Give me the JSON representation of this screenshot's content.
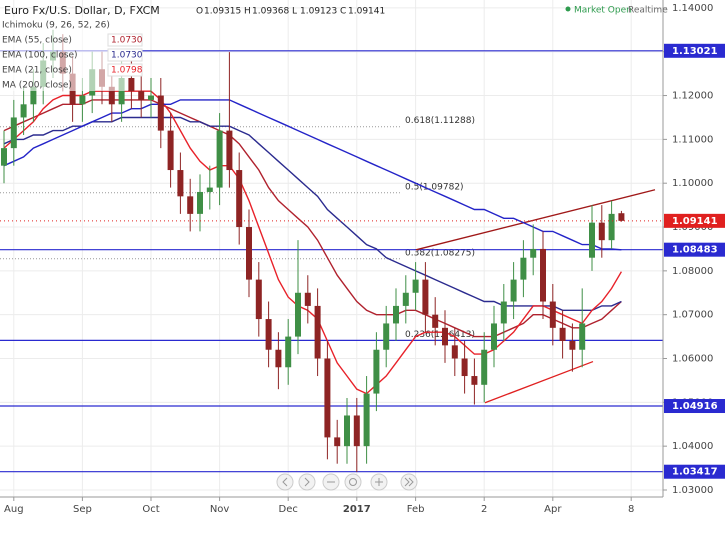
{
  "chart_data": {
    "type": "candlestick",
    "title": "Euro Fx/U.S. Dollar, D, FXCM",
    "ohlc_labels": [
      "O",
      "H",
      "L",
      "C"
    ],
    "status": "Market Open",
    "feed": "Realtime",
    "categories": [
      null,
      "Aug",
      null,
      null,
      null,
      null,
      null,
      null,
      "Sep",
      null,
      null,
      null,
      null,
      null,
      null,
      "Oct",
      null,
      null,
      null,
      null,
      null,
      null,
      "Nov",
      null,
      null,
      null,
      null,
      null,
      null,
      "Dec",
      null,
      null,
      null,
      null,
      null,
      null,
      "2017",
      null,
      null,
      null,
      null,
      null,
      "Feb",
      null,
      null,
      null,
      null,
      null,
      null,
      "2",
      null,
      null,
      null,
      null,
      null,
      null,
      "Apr",
      null,
      null,
      null,
      null,
      null,
      null,
      null,
      "8"
    ],
    "open": [
      1.104,
      1.108,
      1.115,
      1.118,
      1.122,
      1.128,
      1.13,
      1.125,
      1.118,
      1.12,
      1.126,
      1.122,
      1.118,
      1.124,
      1.121,
      1.119,
      1.12,
      1.112,
      1.103,
      1.097,
      1.093,
      1.098,
      1.099,
      1.112,
      1.103,
      1.09,
      1.078,
      1.069,
      1.062,
      1.058,
      1.065,
      1.075,
      1.072,
      1.06,
      1.042,
      1.04,
      1.047,
      1.04,
      1.052,
      1.062,
      1.068,
      1.072,
      1.075,
      1.078,
      1.07,
      1.067,
      1.063,
      1.06,
      1.056,
      1.054,
      1.062,
      1.068,
      1.073,
      1.078,
      1.083,
      1.085,
      1.073,
      1.067,
      1.064,
      1.062,
      1.083,
      1.091,
      1.087,
      1.09315,
      null
    ],
    "high": [
      1.112,
      1.119,
      1.122,
      1.126,
      1.132,
      1.135,
      1.134,
      1.129,
      1.124,
      1.13,
      1.13,
      1.126,
      1.128,
      1.128,
      1.125,
      1.124,
      1.124,
      1.116,
      1.107,
      1.101,
      1.102,
      1.104,
      1.116,
      1.1299,
      1.107,
      1.094,
      1.082,
      1.073,
      1.066,
      1.069,
      1.087,
      1.079,
      1.076,
      1.064,
      1.046,
      1.051,
      1.051,
      1.056,
      1.066,
      1.072,
      1.076,
      1.079,
      1.082,
      1.082,
      1.074,
      1.071,
      1.067,
      1.064,
      1.06,
      1.066,
      1.072,
      1.077,
      1.082,
      1.087,
      1.0906,
      1.089,
      1.077,
      1.071,
      1.068,
      1.076,
      1.095,
      1.095,
      1.096,
      1.09368,
      null
    ],
    "low": [
      1.1,
      1.104,
      1.111,
      1.114,
      1.118,
      1.124,
      1.121,
      1.114,
      1.114,
      1.116,
      1.118,
      1.114,
      1.114,
      1.117,
      1.115,
      1.115,
      1.108,
      1.099,
      1.093,
      1.089,
      1.089,
      1.094,
      1.095,
      1.099,
      1.086,
      1.074,
      1.065,
      1.058,
      1.053,
      1.054,
      1.061,
      1.068,
      1.056,
      1.037,
      1.036,
      1.036,
      1.0341,
      1.036,
      1.048,
      1.058,
      1.064,
      1.068,
      1.071,
      1.066,
      1.063,
      1.059,
      1.056,
      1.052,
      1.0495,
      1.05,
      1.058,
      1.064,
      1.069,
      1.074,
      1.079,
      1.069,
      1.063,
      1.06,
      1.057,
      1.058,
      1.08,
      1.083,
      1.085,
      1.09123,
      null
    ],
    "close": [
      1.108,
      1.115,
      1.118,
      1.122,
      1.128,
      1.13,
      1.125,
      1.118,
      1.12,
      1.126,
      1.122,
      1.118,
      1.124,
      1.121,
      1.119,
      1.12,
      1.112,
      1.103,
      1.097,
      1.093,
      1.098,
      1.099,
      1.112,
      1.103,
      1.09,
      1.078,
      1.069,
      1.062,
      1.058,
      1.065,
      1.075,
      1.072,
      1.06,
      1.042,
      1.04,
      1.047,
      1.04,
      1.052,
      1.062,
      1.068,
      1.072,
      1.075,
      1.078,
      1.07,
      1.067,
      1.063,
      1.06,
      1.056,
      1.054,
      1.062,
      1.068,
      1.073,
      1.078,
      1.083,
      1.085,
      1.073,
      1.067,
      1.064,
      1.062,
      1.068,
      1.091,
      1.087,
      1.093,
      1.09141,
      null
    ],
    "up_color": "#3f8f46",
    "down_color": "#8e2424",
    "indicators": [
      "Ichimoku (9, 26, 52, 26)"
    ],
    "series": [
      {
        "name": "EMA (55, close)",
        "color": "#b0222e",
        "value_label": "1.0730",
        "values": [
          1.112,
          1.113,
          1.114,
          1.115,
          1.116,
          1.117,
          1.118,
          1.118,
          1.118,
          1.119,
          1.119,
          1.119,
          1.119,
          1.119,
          1.119,
          1.119,
          1.118,
          1.117,
          1.116,
          1.115,
          1.114,
          1.113,
          1.112,
          1.111,
          1.109,
          1.106,
          1.103,
          1.099,
          1.096,
          1.094,
          1.092,
          1.09,
          1.087,
          1.083,
          1.079,
          1.076,
          1.073,
          1.071,
          1.07,
          1.07,
          1.07,
          1.071,
          1.071,
          1.07,
          1.069,
          1.068,
          1.067,
          1.066,
          1.065,
          1.065,
          1.065,
          1.066,
          1.067,
          1.068,
          1.07,
          1.07,
          1.069,
          1.068,
          1.067,
          1.067,
          1.068,
          1.069,
          1.071,
          1.073,
          null
        ]
      },
      {
        "name": "EMA (100, close)",
        "color": "#2b2b8f",
        "value_label": "1.0730",
        "values": [
          1.109,
          1.11,
          1.11,
          1.111,
          1.111,
          1.112,
          1.112,
          1.113,
          1.113,
          1.114,
          1.114,
          1.114,
          1.115,
          1.115,
          1.115,
          1.115,
          1.115,
          1.115,
          1.115,
          1.114,
          1.114,
          1.113,
          1.113,
          1.113,
          1.112,
          1.111,
          1.109,
          1.107,
          1.105,
          1.103,
          1.101,
          1.099,
          1.097,
          1.094,
          1.092,
          1.09,
          1.088,
          1.086,
          1.085,
          1.083,
          1.082,
          1.081,
          1.08,
          1.079,
          1.078,
          1.077,
          1.076,
          1.075,
          1.074,
          1.073,
          1.073,
          1.072,
          1.072,
          1.072,
          1.072,
          1.072,
          1.072,
          1.071,
          1.071,
          1.071,
          1.071,
          1.072,
          1.072,
          1.073,
          null
        ]
      },
      {
        "name": "EMA (21, close)",
        "color": "#e8222a",
        "value_label": "1.0798",
        "values": [
          1.108,
          1.11,
          1.112,
          1.114,
          1.117,
          1.119,
          1.12,
          1.12,
          1.12,
          1.121,
          1.121,
          1.121,
          1.121,
          1.121,
          1.121,
          1.121,
          1.119,
          1.116,
          1.112,
          1.108,
          1.105,
          1.103,
          1.104,
          1.104,
          1.101,
          1.096,
          1.09,
          1.084,
          1.078,
          1.074,
          1.072,
          1.071,
          1.069,
          1.064,
          1.059,
          1.056,
          1.053,
          1.052,
          1.054,
          1.056,
          1.059,
          1.062,
          1.065,
          1.066,
          1.066,
          1.066,
          1.065,
          1.063,
          1.061,
          1.061,
          1.062,
          1.064,
          1.066,
          1.069,
          1.072,
          1.072,
          1.071,
          1.07,
          1.069,
          1.068,
          1.071,
          1.073,
          1.076,
          1.0798,
          null
        ]
      },
      {
        "name": "MA (200, close)",
        "color": "#2424c8",
        "values": [
          1.104,
          1.105,
          1.106,
          1.108,
          1.109,
          1.11,
          1.111,
          1.112,
          1.113,
          1.114,
          1.115,
          1.116,
          1.116,
          1.117,
          1.117,
          1.118,
          1.118,
          1.118,
          1.119,
          1.119,
          1.119,
          1.119,
          1.119,
          1.119,
          1.118,
          1.117,
          1.116,
          1.115,
          1.114,
          1.113,
          1.112,
          1.111,
          1.11,
          1.109,
          1.108,
          1.107,
          1.106,
          1.105,
          1.104,
          1.103,
          1.102,
          1.101,
          1.1,
          1.099,
          1.098,
          1.097,
          1.096,
          1.095,
          1.094,
          1.094,
          1.093,
          1.092,
          1.092,
          1.091,
          1.09,
          1.089,
          1.089,
          1.088,
          1.087,
          1.086,
          1.086,
          1.085,
          1.085,
          1.0848,
          null
        ]
      }
    ],
    "levels": [
      1.13021,
      1.08483,
      1.04916,
      1.03417
    ],
    "level_color": "#2a2ad0",
    "last_price": 1.09141,
    "last_color": "#e0201f",
    "fib_levels": [
      {
        "value": 1.11288,
        "label": "0.618(1.11288)",
        "style": "dotted"
      },
      {
        "value": 1.09782,
        "label": "0.5(1.09782)",
        "style": "dotted"
      },
      {
        "value": 1.08275,
        "label": "0.382(1.08275)",
        "style": "dotted"
      },
      {
        "value": 1.06413,
        "label": "0.236(1.06413)",
        "style": "solid"
      }
    ],
    "trendlines": [
      {
        "color": "#a01818",
        "values": [
          1.0848,
          1.0985
        ]
      },
      {
        "color": "#e02020",
        "values": [
          1.0499,
          1.0593
        ]
      }
    ],
    "ylim": [
      1.0284,
      1.1418
    ],
    "yticks": [
      {
        "value": 1.03,
        "label": "1.03000"
      },
      {
        "value": 1.04,
        "label": "1.04000"
      },
      {
        "value": 1.05,
        "label": "1.05000"
      },
      {
        "value": 1.06,
        "label": "1.06000"
      },
      {
        "value": 1.07,
        "label": "1.07000"
      },
      {
        "value": 1.08,
        "label": "1.08000"
      },
      {
        "value": 1.09,
        "label": "1.09000"
      },
      {
        "value": 1.1,
        "label": "1.10000"
      },
      {
        "value": 1.11,
        "label": "1.11000"
      },
      {
        "value": 1.12,
        "label": "1.12000"
      },
      {
        "value": 1.13,
        "label": "1.13000"
      },
      {
        "value": 1.14,
        "label": "1.14000"
      }
    ],
    "grid": true
  }
}
